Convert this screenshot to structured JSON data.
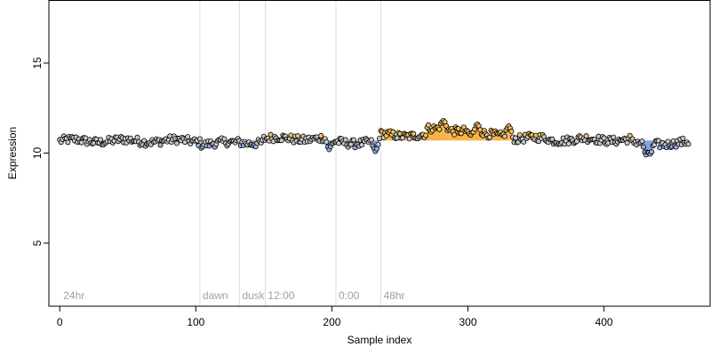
{
  "chart_data": {
    "type": "scatter",
    "xlabel": "Sample index",
    "ylabel": "Expression",
    "xlim": [
      -8,
      478
    ],
    "ylim": [
      1.5,
      18.5
    ],
    "x_ticks": [
      0,
      100,
      200,
      300,
      400
    ],
    "y_ticks": [
      5,
      10,
      15
    ],
    "grid": false,
    "n_samples": 463,
    "baseline": 10.7,
    "markers": [
      {
        "x": 103,
        "label": "dawn"
      },
      {
        "x": 132,
        "label": "dusk"
      },
      {
        "x": 151,
        "label": "12:00"
      },
      {
        "x": 203,
        "label": "0:00"
      },
      {
        "x": 236,
        "label": "48hr"
      }
    ],
    "start_label": "24hr",
    "series": [
      {
        "segments": [
          {
            "x_start": 0,
            "x_end": 104,
            "level": 10.68
          },
          {
            "x_start": 104,
            "x_end": 130,
            "level": 10.55
          },
          {
            "x_start": 130,
            "x_end": 150,
            "level": 10.6
          },
          {
            "x_start": 150,
            "x_end": 200,
            "level": 10.8
          },
          {
            "x_start": 200,
            "x_end": 235,
            "level": 10.6
          },
          {
            "x_start": 235,
            "x_end": 270,
            "level": 11.0
          },
          {
            "x_start": 270,
            "x_end": 300,
            "level": 11.3
          },
          {
            "x_start": 300,
            "x_end": 330,
            "level": 11.0
          },
          {
            "x_start": 330,
            "x_end": 360,
            "level": 10.8
          },
          {
            "x_start": 360,
            "x_end": 420,
            "level": 10.75
          },
          {
            "x_start": 420,
            "x_end": 463,
            "level": 10.55
          }
        ],
        "dips": [
          {
            "x": 198,
            "value": 10.2
          },
          {
            "x": 232,
            "value": 10.1
          },
          {
            "x": 431,
            "value": 9.9
          },
          {
            "x": 434,
            "value": 9.95
          }
        ],
        "peaks": [
          {
            "x": 282,
            "value": 11.8
          },
          {
            "x": 307,
            "value": 11.6
          },
          {
            "x": 330,
            "value": 11.5
          }
        ]
      }
    ]
  },
  "colors": {
    "point_fill_high": "#f0c060",
    "point_fill_low": "#9ab0e0",
    "point_fill_mid": "#c8c8c8",
    "segment_high": "#f5a623",
    "segment_low": "#6f8fd6",
    "marker_line": "#dddddd",
    "annotation": "#a0a0a0"
  }
}
